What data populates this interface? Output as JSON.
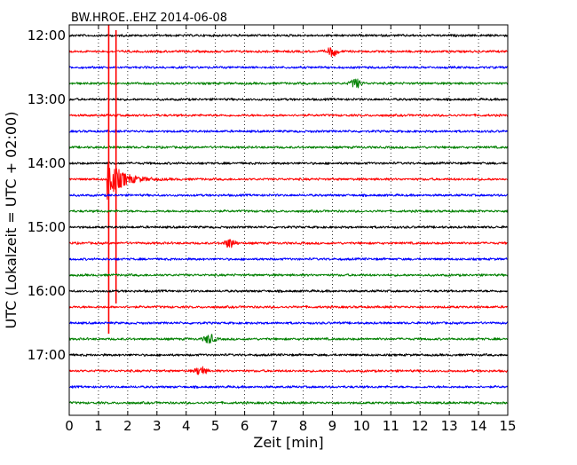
{
  "chart_data": {
    "type": "line",
    "title": "BW.HROE..EHZ 2014-06-08",
    "xlabel": "Zeit  [min]",
    "ylabel": "UTC (Lokalzeit = UTC + 02:00)",
    "xlim": [
      0,
      15
    ],
    "x_ticks": [
      0,
      1,
      2,
      3,
      4,
      5,
      6,
      7,
      8,
      9,
      10,
      11,
      12,
      13,
      14,
      15
    ],
    "y_tick_labels": [
      "12:00",
      "13:00",
      "14:00",
      "15:00",
      "16:00",
      "17:00"
    ],
    "grid": "vertical dotted",
    "row_interval_minutes": 15,
    "row_colors": [
      "#000000",
      "#ff0000",
      "#0000ff",
      "#008000"
    ],
    "traces": [
      "12:00",
      "12:15",
      "12:30",
      "12:45",
      "13:00",
      "13:15",
      "13:30",
      "13:45",
      "14:00",
      "14:15",
      "14:30",
      "14:45",
      "15:00",
      "15:15",
      "15:30",
      "15:45",
      "16:00",
      "16:15",
      "16:30",
      "16:45",
      "17:00",
      "17:15",
      "17:30",
      "17:45"
    ],
    "events": [
      {
        "trace": "14:15",
        "minute": 1.3,
        "type": "large earthquake spikes",
        "peaks_minutes": [
          1.35,
          1.6
        ]
      },
      {
        "trace": "15:15",
        "minute": 5.5,
        "type": "local burst"
      },
      {
        "trace": "16:45",
        "minute": 4.8,
        "type": "local burst"
      },
      {
        "trace": "17:15",
        "minute": 4.5,
        "type": "local burst"
      },
      {
        "trace": "12:45",
        "minute": 9.8,
        "type": "noise burst"
      },
      {
        "trace": "12:15",
        "minute": 9.0,
        "type": "noise burst"
      }
    ]
  }
}
